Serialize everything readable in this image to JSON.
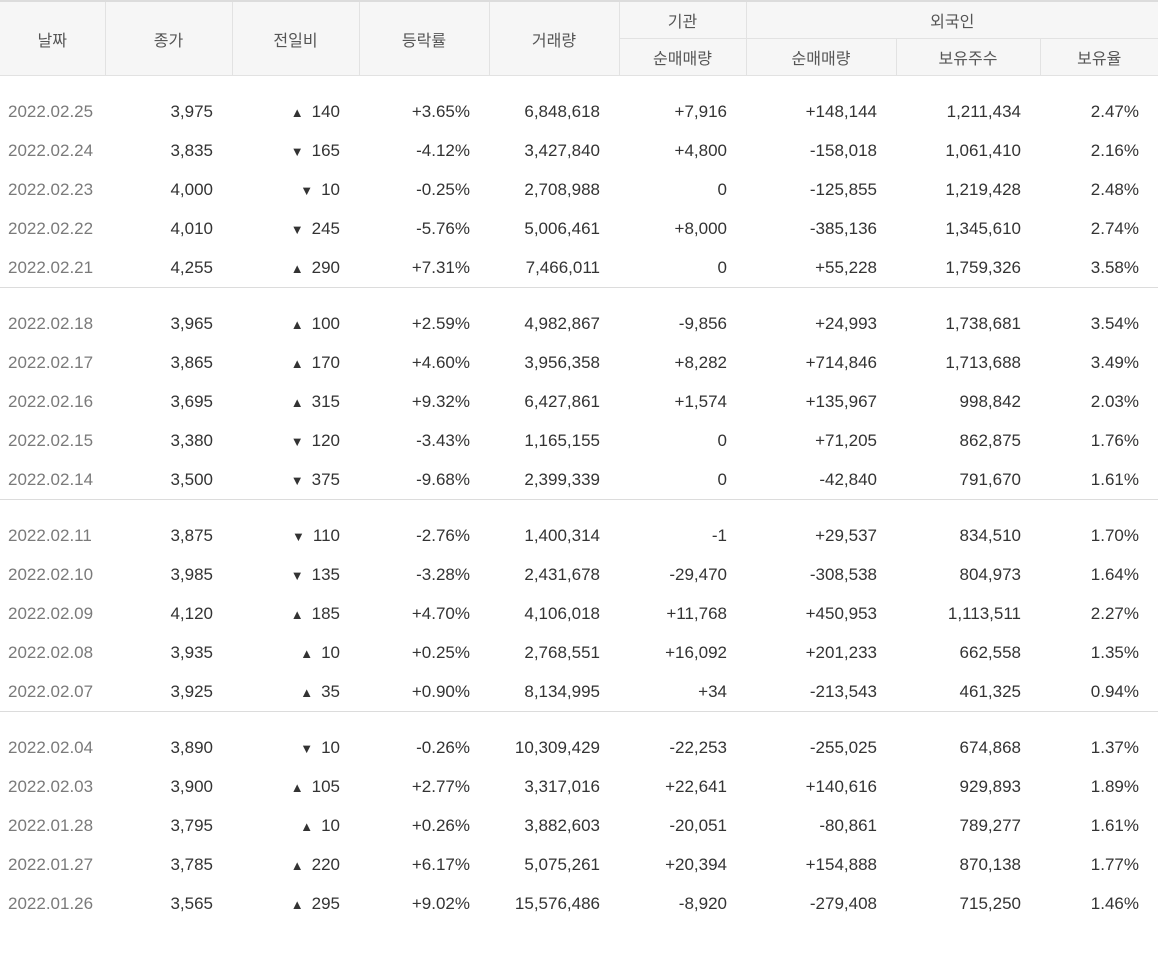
{
  "headers": {
    "date": "날짜",
    "close": "종가",
    "change": "전일비",
    "rate": "등락률",
    "volume": "거래량",
    "institution": "기관",
    "institution_net": "순매매량",
    "foreign": "외국인",
    "foreign_net": "순매매량",
    "foreign_holdings": "보유주수",
    "foreign_ratio": "보유율"
  },
  "colors": {
    "up": "#d0021b",
    "down": "#1b4fc9"
  },
  "arrows": {
    "up": "▲",
    "down": "▼"
  },
  "groups": [
    [
      {
        "date": "2022.02.25",
        "close": "3,975",
        "dir": "up",
        "change": "140",
        "rate": "+3.65%",
        "volume": "6,848,618",
        "inst": "+7,916",
        "foreign": "+148,144",
        "holdings": "1,211,434",
        "ratio": "2.47%"
      },
      {
        "date": "2022.02.24",
        "close": "3,835",
        "dir": "down",
        "change": "165",
        "rate": "-4.12%",
        "volume": "3,427,840",
        "inst": "+4,800",
        "foreign": "-158,018",
        "holdings": "1,061,410",
        "ratio": "2.16%"
      },
      {
        "date": "2022.02.23",
        "close": "4,000",
        "dir": "down",
        "change": "10",
        "rate": "-0.25%",
        "volume": "2,708,988",
        "inst": "0",
        "foreign": "-125,855",
        "holdings": "1,219,428",
        "ratio": "2.48%"
      },
      {
        "date": "2022.02.22",
        "close": "4,010",
        "dir": "down",
        "change": "245",
        "rate": "-5.76%",
        "volume": "5,006,461",
        "inst": "+8,000",
        "foreign": "-385,136",
        "holdings": "1,345,610",
        "ratio": "2.74%"
      },
      {
        "date": "2022.02.21",
        "close": "4,255",
        "dir": "up",
        "change": "290",
        "rate": "+7.31%",
        "volume": "7,466,011",
        "inst": "0",
        "foreign": "+55,228",
        "holdings": "1,759,326",
        "ratio": "3.58%"
      }
    ],
    [
      {
        "date": "2022.02.18",
        "close": "3,965",
        "dir": "up",
        "change": "100",
        "rate": "+2.59%",
        "volume": "4,982,867",
        "inst": "-9,856",
        "foreign": "+24,993",
        "holdings": "1,738,681",
        "ratio": "3.54%"
      },
      {
        "date": "2022.02.17",
        "close": "3,865",
        "dir": "up",
        "change": "170",
        "rate": "+4.60%",
        "volume": "3,956,358",
        "inst": "+8,282",
        "foreign": "+714,846",
        "holdings": "1,713,688",
        "ratio": "3.49%"
      },
      {
        "date": "2022.02.16",
        "close": "3,695",
        "dir": "up",
        "change": "315",
        "rate": "+9.32%",
        "volume": "6,427,861",
        "inst": "+1,574",
        "foreign": "+135,967",
        "holdings": "998,842",
        "ratio": "2.03%"
      },
      {
        "date": "2022.02.15",
        "close": "3,380",
        "dir": "down",
        "change": "120",
        "rate": "-3.43%",
        "volume": "1,165,155",
        "inst": "0",
        "foreign": "+71,205",
        "holdings": "862,875",
        "ratio": "1.76%"
      },
      {
        "date": "2022.02.14",
        "close": "3,500",
        "dir": "down",
        "change": "375",
        "rate": "-9.68%",
        "volume": "2,399,339",
        "inst": "0",
        "foreign": "-42,840",
        "holdings": "791,670",
        "ratio": "1.61%"
      }
    ],
    [
      {
        "date": "2022.02.11",
        "close": "3,875",
        "dir": "down",
        "change": "110",
        "rate": "-2.76%",
        "volume": "1,400,314",
        "inst": "-1",
        "foreign": "+29,537",
        "holdings": "834,510",
        "ratio": "1.70%"
      },
      {
        "date": "2022.02.10",
        "close": "3,985",
        "dir": "down",
        "change": "135",
        "rate": "-3.28%",
        "volume": "2,431,678",
        "inst": "-29,470",
        "foreign": "-308,538",
        "holdings": "804,973",
        "ratio": "1.64%"
      },
      {
        "date": "2022.02.09",
        "close": "4,120",
        "dir": "up",
        "change": "185",
        "rate": "+4.70%",
        "volume": "4,106,018",
        "inst": "+11,768",
        "foreign": "+450,953",
        "holdings": "1,113,511",
        "ratio": "2.27%"
      },
      {
        "date": "2022.02.08",
        "close": "3,935",
        "dir": "up",
        "change": "10",
        "rate": "+0.25%",
        "volume": "2,768,551",
        "inst": "+16,092",
        "foreign": "+201,233",
        "holdings": "662,558",
        "ratio": "1.35%"
      },
      {
        "date": "2022.02.07",
        "close": "3,925",
        "dir": "up",
        "change": "35",
        "rate": "+0.90%",
        "volume": "8,134,995",
        "inst": "+34",
        "foreign": "-213,543",
        "holdings": "461,325",
        "ratio": "0.94%"
      }
    ],
    [
      {
        "date": "2022.02.04",
        "close": "3,890",
        "dir": "down",
        "change": "10",
        "rate": "-0.26%",
        "volume": "10,309,429",
        "inst": "-22,253",
        "foreign": "-255,025",
        "holdings": "674,868",
        "ratio": "1.37%"
      },
      {
        "date": "2022.02.03",
        "close": "3,900",
        "dir": "up",
        "change": "105",
        "rate": "+2.77%",
        "volume": "3,317,016",
        "inst": "+22,641",
        "foreign": "+140,616",
        "holdings": "929,893",
        "ratio": "1.89%"
      },
      {
        "date": "2022.01.28",
        "close": "3,795",
        "dir": "up",
        "change": "10",
        "rate": "+0.26%",
        "volume": "3,882,603",
        "inst": "-20,051",
        "foreign": "-80,861",
        "holdings": "789,277",
        "ratio": "1.61%"
      },
      {
        "date": "2022.01.27",
        "close": "3,785",
        "dir": "up",
        "change": "220",
        "rate": "+6.17%",
        "volume": "5,075,261",
        "inst": "+20,394",
        "foreign": "+154,888",
        "holdings": "870,138",
        "ratio": "1.77%"
      },
      {
        "date": "2022.01.26",
        "close": "3,565",
        "dir": "up",
        "change": "295",
        "rate": "+9.02%",
        "volume": "15,576,486",
        "inst": "-8,920",
        "foreign": "-279,408",
        "holdings": "715,250",
        "ratio": "1.46%"
      }
    ]
  ]
}
